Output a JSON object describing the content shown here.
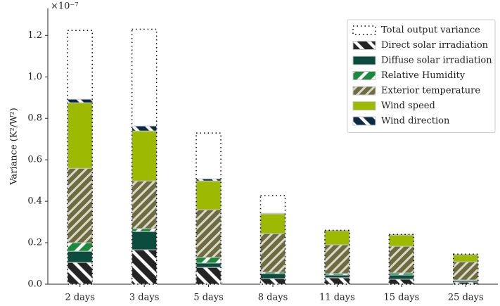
{
  "chart_data": {
    "type": "stacked-bar",
    "ylabel": "Variance (K²/W²)",
    "multiplier": "×10⁻⁷",
    "categories": [
      "2 days",
      "3 days",
      "5 days",
      "8 days",
      "11 days",
      "15 days",
      "25 days"
    ],
    "total": {
      "name": "Total output variance",
      "color": "#000000",
      "values": [
        1.224,
        1.23,
        0.729,
        0.427,
        0.26,
        0.24,
        0.145
      ]
    },
    "series": [
      {
        "name": "Direct solar irradiation",
        "color": "#242424",
        "hatch": "\\",
        "values": [
          0.105,
          0.166,
          0.081,
          0.027,
          0.031,
          0.024,
          0.01
        ]
      },
      {
        "name": "Diffuse solar irradiation",
        "color": "#0b4c3e",
        "hatch": "",
        "values": [
          0.054,
          0.088,
          0.021,
          0.024,
          0.013,
          0.02,
          0.007
        ]
      },
      {
        "name": "Relative Humidity",
        "color": "#1b8a3c",
        "hatch": "/",
        "values": [
          0.041,
          0.014,
          0.027,
          0.007,
          0.007,
          0.01,
          0.003
        ]
      },
      {
        "name": "Exterior temperature",
        "color": "#6e6c3c",
        "hatch": "//",
        "values": [
          0.359,
          0.23,
          0.23,
          0.186,
          0.139,
          0.129,
          0.088
        ]
      },
      {
        "name": "Wind speed",
        "color": "#9db900",
        "hatch": "",
        "values": [
          0.316,
          0.241,
          0.139,
          0.095,
          0.068,
          0.054,
          0.034
        ]
      },
      {
        "name": "Wind direction",
        "color": "#0c2a46",
        "hatch": "\\",
        "values": [
          0.017,
          0.024,
          0.01,
          0.003,
          0.002,
          0.003,
          0.002
        ]
      }
    ],
    "ylim": [
      0,
      1.33
    ],
    "yticks": [
      {
        "value": 0,
        "label": "0.0"
      },
      0.2,
      0.4,
      0.6,
      0.8,
      {
        "value": 1,
        "label": "1.0"
      },
      1.2
    ],
    "legend": "upper right"
  }
}
